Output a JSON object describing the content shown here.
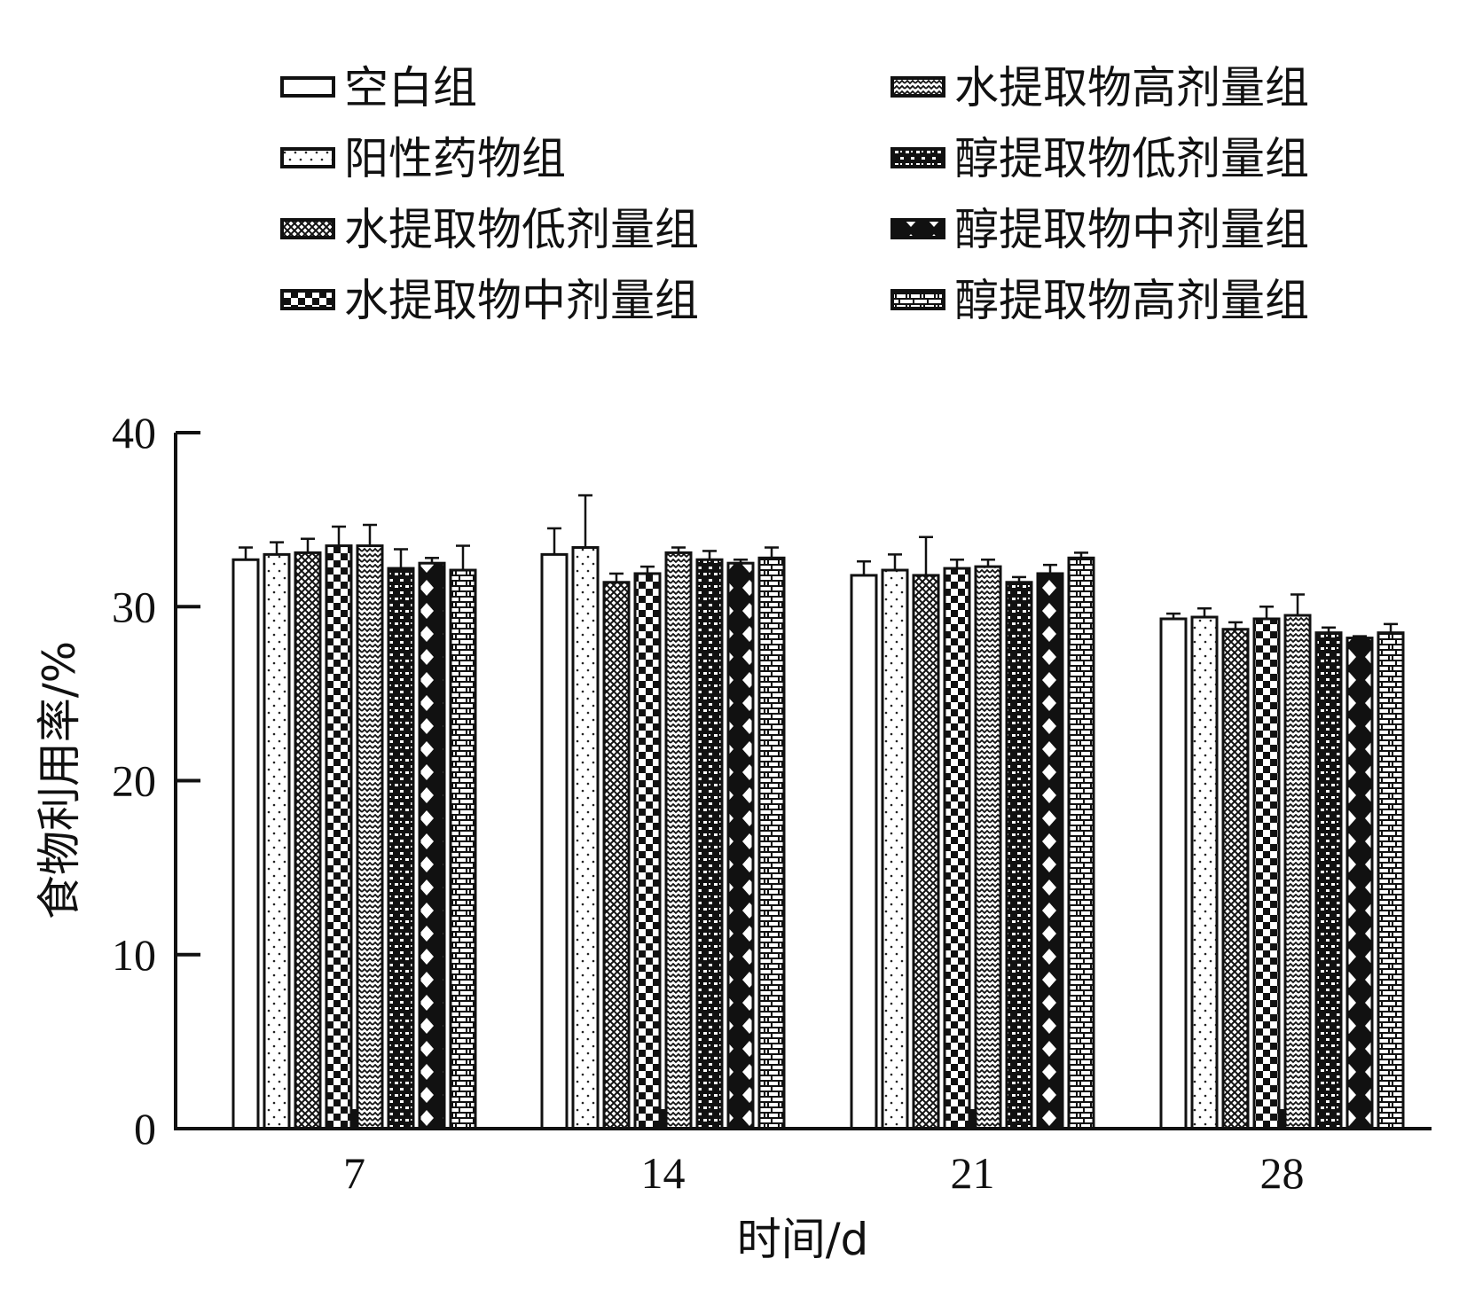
{
  "chart_data": {
    "type": "bar",
    "title": "",
    "xlabel": "时间/d",
    "ylabel": "食物利用率/%",
    "ylim": [
      0,
      40
    ],
    "yticks": [
      0,
      10,
      20,
      30,
      40
    ],
    "grid": false,
    "legend_position": "top",
    "categories": [
      "7",
      "14",
      "21",
      "28"
    ],
    "series": [
      {
        "name": "空白组",
        "pattern": "blank",
        "values": [
          32.7,
          33.0,
          31.8,
          29.3
        ],
        "errors": [
          0.7,
          1.5,
          0.8,
          0.3
        ]
      },
      {
        "name": "阳性药物组",
        "pattern": "dots",
        "values": [
          33.0,
          33.4,
          32.1,
          29.4
        ],
        "errors": [
          0.7,
          3.0,
          0.9,
          0.5
        ]
      },
      {
        "name": "水提取物低剂量组",
        "pattern": "crosshatch",
        "values": [
          33.1,
          31.4,
          31.8,
          28.7
        ],
        "errors": [
          0.8,
          0.5,
          2.2,
          0.4
        ]
      },
      {
        "name": "水提取物中剂量组",
        "pattern": "checker",
        "values": [
          33.5,
          31.9,
          32.2,
          29.3
        ],
        "errors": [
          1.1,
          0.4,
          0.5,
          0.7
        ]
      },
      {
        "name": "水提取物高剂量组",
        "pattern": "zigzag",
        "values": [
          33.5,
          33.1,
          32.3,
          29.5
        ],
        "errors": [
          1.2,
          0.3,
          0.4,
          1.2
        ]
      },
      {
        "name": "醇提取物低剂量组",
        "pattern": "dashes",
        "values": [
          32.2,
          32.7,
          31.4,
          28.5
        ],
        "errors": [
          1.1,
          0.5,
          0.3,
          0.3
        ]
      },
      {
        "name": "醇提取物中剂量组",
        "pattern": "diamonds",
        "values": [
          32.5,
          32.5,
          31.9,
          28.2
        ],
        "errors": [
          0.3,
          0.2,
          0.5,
          0.1
        ]
      },
      {
        "name": "醇提取物高剂量组",
        "pattern": "bricks",
        "values": [
          32.1,
          32.8,
          32.8,
          28.5
        ],
        "errors": [
          1.4,
          0.6,
          0.3,
          0.5
        ]
      }
    ]
  }
}
